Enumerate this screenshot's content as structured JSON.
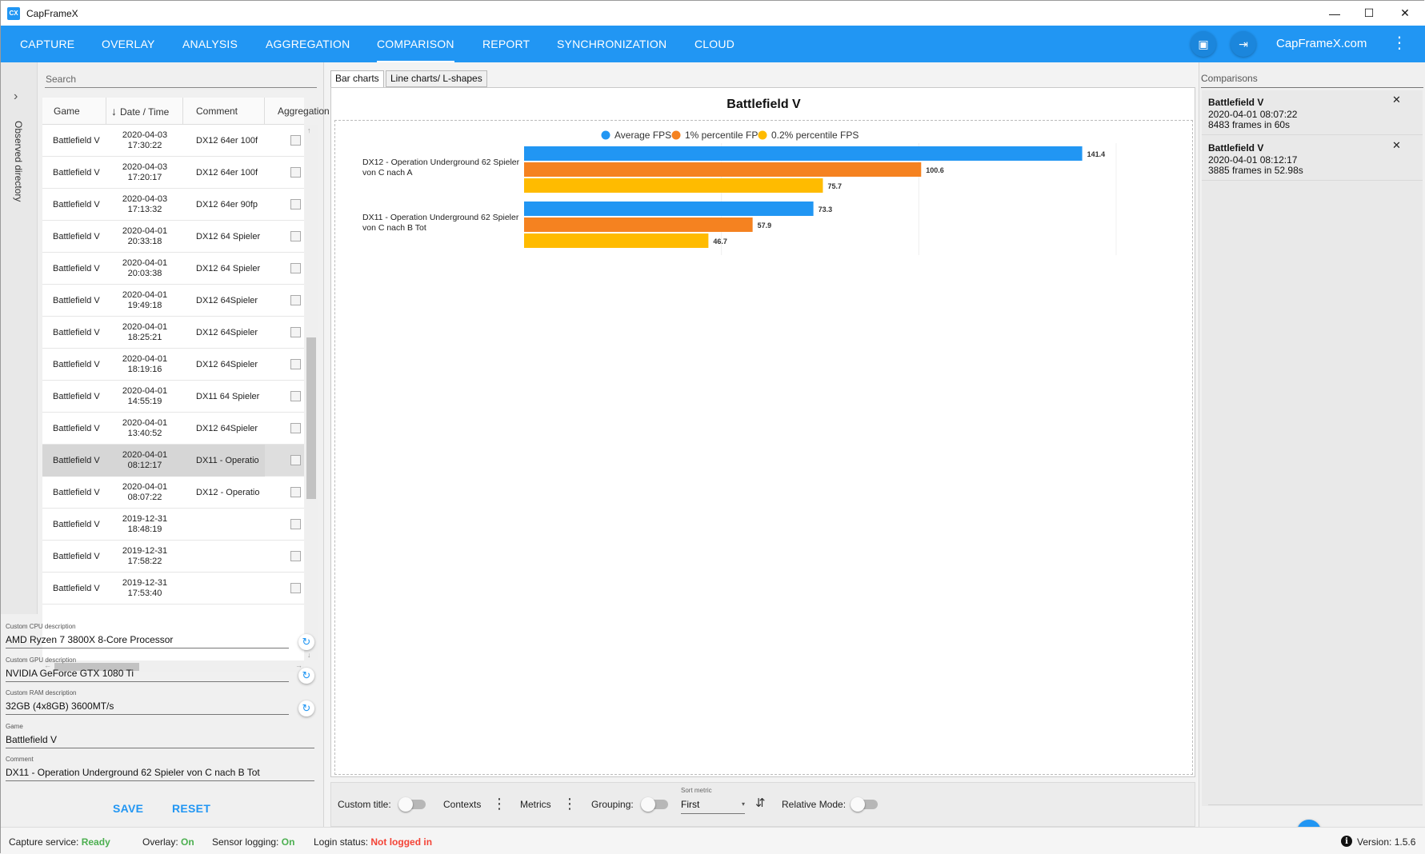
{
  "window": {
    "title": "CapFrameX",
    "logo_text": "CX",
    "min_icon": "—",
    "max_icon": "☐",
    "close_icon": "✕"
  },
  "menu": {
    "tabs": [
      {
        "label": "CAPTURE"
      },
      {
        "label": "OVERLAY"
      },
      {
        "label": "ANALYSIS"
      },
      {
        "label": "AGGREGATION"
      },
      {
        "label": "COMPARISON"
      },
      {
        "label": "REPORT"
      },
      {
        "label": "SYNCHRONIZATION"
      },
      {
        "label": "CLOUD"
      }
    ],
    "active_tab": "COMPARISON",
    "website": "CapFrameX.com",
    "icon_screenshot": "▣",
    "icon_login": "⇥",
    "icon_kebab": "⋮"
  },
  "sidebar": {
    "observed_label": "Observed directory",
    "chevron": "›"
  },
  "search": {
    "placeholder": "Search",
    "value": ""
  },
  "table": {
    "headers": {
      "game": "Game",
      "date": "Date / Time",
      "sort_icon": "↓",
      "comment": "Comment",
      "aggregate": "Aggregation"
    },
    "rows": [
      {
        "game": "Battlefield V",
        "date": "2020-04-03",
        "time": "17:30:22",
        "comment": "DX12 64er 100f",
        "selected": false
      },
      {
        "game": "Battlefield V",
        "date": "2020-04-03",
        "time": "17:20:17",
        "comment": "DX12 64er 100f",
        "selected": false
      },
      {
        "game": "Battlefield V",
        "date": "2020-04-03",
        "time": "17:13:32",
        "comment": "DX12 64er 90fp",
        "selected": false
      },
      {
        "game": "Battlefield V",
        "date": "2020-04-01",
        "time": "20:33:18",
        "comment": "DX12 64 Spieler",
        "selected": false
      },
      {
        "game": "Battlefield V",
        "date": "2020-04-01",
        "time": "20:03:38",
        "comment": "DX12 64 Spieler",
        "selected": false
      },
      {
        "game": "Battlefield V",
        "date": "2020-04-01",
        "time": "19:49:18",
        "comment": "DX12 64Spieler",
        "selected": false
      },
      {
        "game": "Battlefield V",
        "date": "2020-04-01",
        "time": "18:25:21",
        "comment": "DX12 64Spieler",
        "selected": false
      },
      {
        "game": "Battlefield V",
        "date": "2020-04-01",
        "time": "18:19:16",
        "comment": "DX12 64Spieler",
        "selected": false
      },
      {
        "game": "Battlefield V",
        "date": "2020-04-01",
        "time": "14:55:19",
        "comment": "DX11 64 Spieler",
        "selected": false
      },
      {
        "game": "Battlefield V",
        "date": "2020-04-01",
        "time": "13:40:52",
        "comment": "DX12 64Spieler",
        "selected": false
      },
      {
        "game": "Battlefield V",
        "date": "2020-04-01",
        "time": "08:12:17",
        "comment": "DX11 - Operatio",
        "selected": true
      },
      {
        "game": "Battlefield V",
        "date": "2020-04-01",
        "time": "08:07:22",
        "comment": "DX12 - Operatio",
        "selected": false
      },
      {
        "game": "Battlefield V",
        "date": "2019-12-31",
        "time": "18:48:19",
        "comment": "",
        "selected": false
      },
      {
        "game": "Battlefield V",
        "date": "2019-12-31",
        "time": "17:58:22",
        "comment": "",
        "selected": false
      },
      {
        "game": "Battlefield V",
        "date": "2019-12-31",
        "time": "17:53:40",
        "comment": "",
        "selected": false
      }
    ],
    "scroll_up": "↑",
    "scroll_down": "↓",
    "scroll_left": "←",
    "scroll_right": "→"
  },
  "details": {
    "cpu_label": "Custom CPU description",
    "cpu_value": "AMD Ryzen 7 3800X 8-Core Processor",
    "gpu_label": "Custom GPU description",
    "gpu_value": "NVIDIA GeForce GTX 1080 Ti",
    "ram_label": "Custom RAM description",
    "ram_value": "32GB (4x8GB) 3600MT/s",
    "game_label": "Game",
    "game_value": "Battlefield V",
    "comment_label": "Comment",
    "comment_value": "DX11 - Operation Underground 62 Spieler von C nach B Tot",
    "refresh_icon": "↻",
    "save_label": "SAVE",
    "reset_label": "RESET"
  },
  "center_tabs": [
    {
      "label": "Bar charts",
      "active": true
    },
    {
      "label": "Line charts/ L-shapes",
      "active": false
    }
  ],
  "chart_data": {
    "type": "bar",
    "orientation": "horizontal",
    "title": "Battlefield V",
    "categories": [
      [
        "DX12 - Operation Underground 62 Spieler",
        "von C nach A"
      ],
      [
        "DX11 - Operation Underground 62 Spieler",
        "von C nach B Tot"
      ]
    ],
    "series": [
      {
        "name": "Average FPS",
        "color": "#2196f3",
        "values": [
          141.4,
          73.3
        ]
      },
      {
        "name": "1% percentile FPS",
        "color": "#f58220",
        "values": [
          100.6,
          57.9
        ]
      },
      {
        "name": "0.2% percentile FPS",
        "color": "#ffbb00",
        "values": [
          75.7,
          46.7
        ]
      }
    ],
    "xlim": [
      0,
      150
    ],
    "legend_position": "top-center",
    "data_labels": true,
    "grid": true
  },
  "bottombar": {
    "custom_title_label": "Custom title:",
    "contexts_label": "Contexts",
    "metrics_label": "Metrics",
    "grouping_label": "Grouping:",
    "sort_metric_label": "Sort metric",
    "sort_metric_value": "First",
    "sort_caret": "▾",
    "sort_dir_icon": "⇵",
    "relative_mode_label": "Relative Mode:",
    "dots_icon": "⋮"
  },
  "comparisons": {
    "header": "Comparisons",
    "items": [
      {
        "game": "Battlefield V",
        "date": "2020-04-01 08:07:22",
        "frames": "8483 frames in 60s"
      },
      {
        "game": "Battlefield V",
        "date": "2020-04-01 08:12:17",
        "frames": "3885 frames in 52.98s"
      }
    ],
    "close_icon": "✕",
    "clear_icon": "≡x"
  },
  "status": {
    "capture_label": "Capture service:",
    "capture_value": "Ready",
    "overlay_label": "Overlay:",
    "overlay_value": "On",
    "sensor_label": "Sensor logging:",
    "sensor_value": "On",
    "login_label": "Login status:",
    "login_value": "Not logged in",
    "info_icon": "i",
    "version_label": "Version: 1.5.6"
  }
}
